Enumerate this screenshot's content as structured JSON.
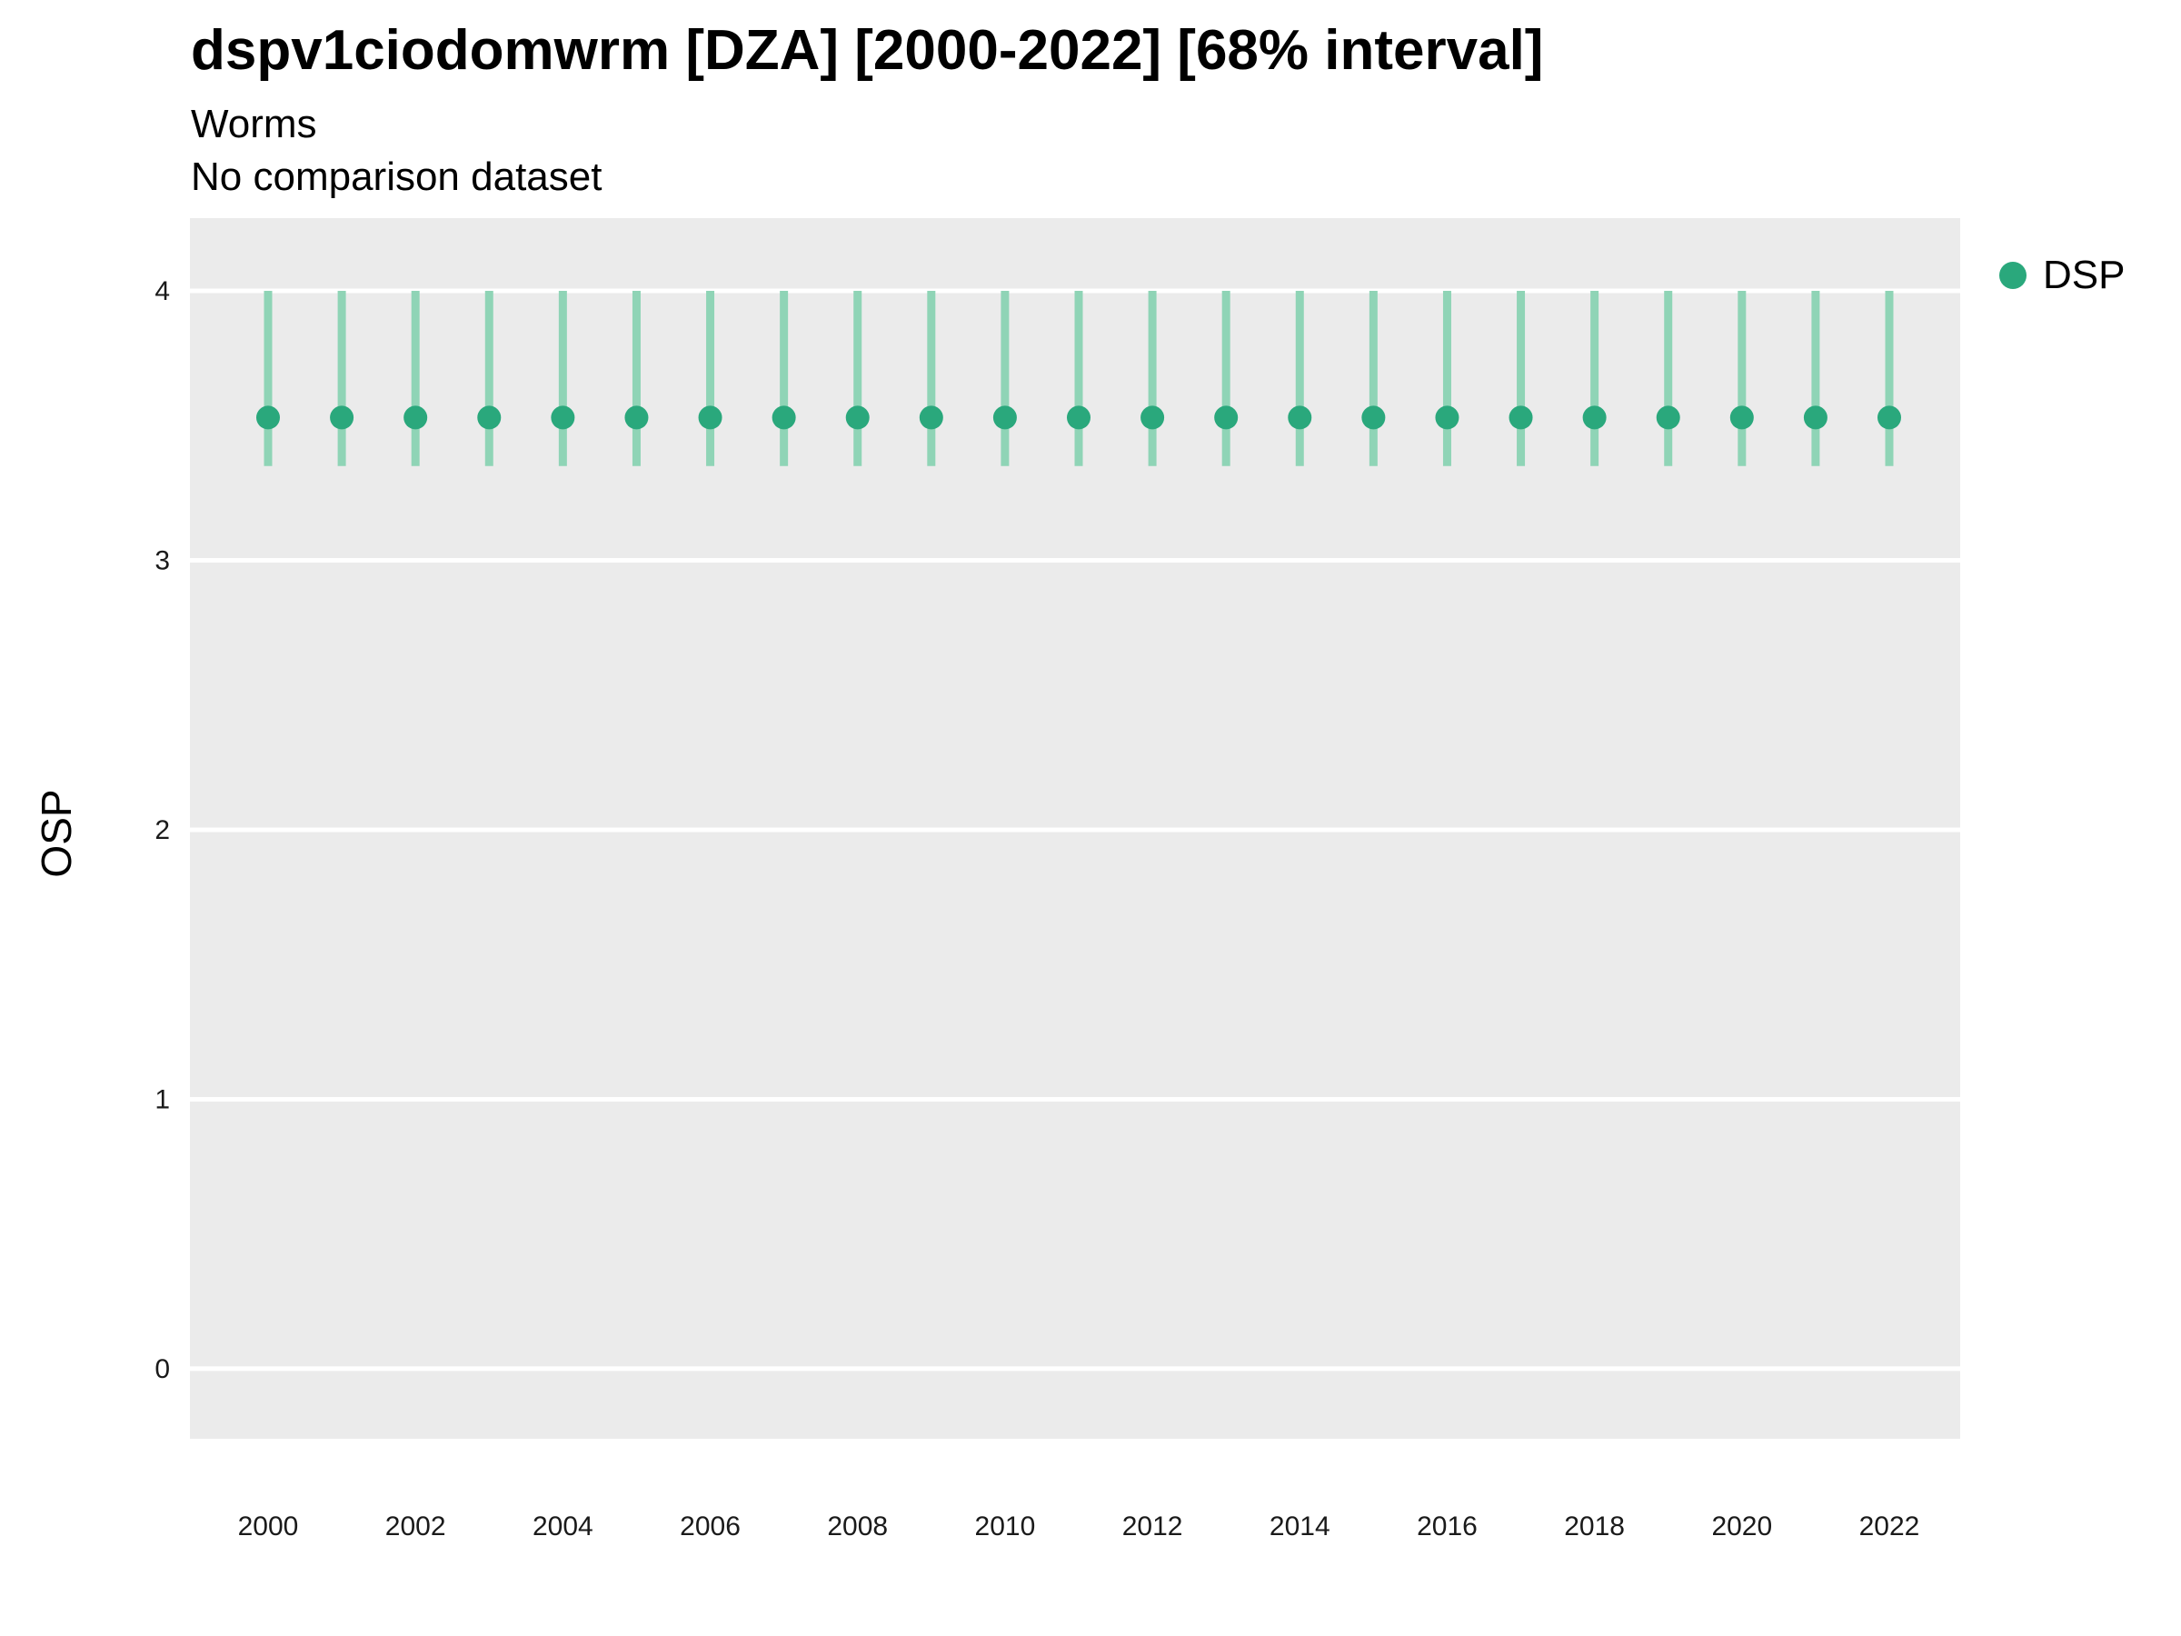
{
  "chart_data": {
    "type": "pointrange",
    "title": "dspv1ciodomwrm [DZA] [2000-2022] [68% interval]",
    "subtitle": "Worms",
    "subtitle2": "No comparison dataset",
    "xlabel": "",
    "ylabel": "OSP",
    "ylim": [
      -0.26,
      4.27
    ],
    "yticks": [
      0,
      1,
      2,
      3,
      4
    ],
    "xtick_labels": [
      2000,
      2002,
      2004,
      2006,
      2008,
      2010,
      2012,
      2014,
      2016,
      2018,
      2020,
      2022
    ],
    "x": [
      2000,
      2001,
      2002,
      2003,
      2004,
      2005,
      2006,
      2007,
      2008,
      2009,
      2010,
      2011,
      2012,
      2013,
      2014,
      2015,
      2016,
      2017,
      2018,
      2019,
      2020,
      2021,
      2022
    ],
    "series": [
      {
        "name": "DSP",
        "values": [
          3.53,
          3.53,
          3.53,
          3.53,
          3.53,
          3.53,
          3.53,
          3.53,
          3.53,
          3.53,
          3.53,
          3.53,
          3.53,
          3.53,
          3.53,
          3.53,
          3.53,
          3.53,
          3.53,
          3.53,
          3.53,
          3.53,
          3.53
        ],
        "lower": [
          3.35,
          3.35,
          3.35,
          3.35,
          3.35,
          3.35,
          3.35,
          3.35,
          3.35,
          3.35,
          3.35,
          3.35,
          3.35,
          3.35,
          3.35,
          3.35,
          3.35,
          3.35,
          3.35,
          3.35,
          3.35,
          3.35,
          3.35
        ],
        "upper": [
          4.0,
          4.0,
          4.0,
          4.0,
          4.0,
          4.0,
          4.0,
          4.0,
          4.0,
          4.0,
          4.0,
          4.0,
          4.0,
          4.0,
          4.0,
          4.0,
          4.0,
          4.0,
          4.0,
          4.0,
          4.0,
          4.0,
          4.0
        ]
      }
    ],
    "legend_position": "right",
    "grid": true,
    "colors": {
      "point": "#2aa87c",
      "interval": "#8fd4b6",
      "panel_bg": "#ebebeb",
      "grid_line": "#ffffff",
      "tick_text": "#1a1a1a"
    }
  }
}
